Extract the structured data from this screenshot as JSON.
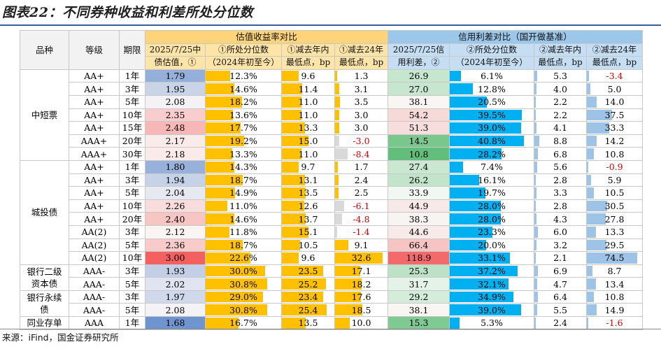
{
  "title": "图表22：不同券种收益和利差所处分位数",
  "source": "来源：iFind，国金证券研究所",
  "colors": {
    "yield_pos_bar": "#ffc000",
    "yield_neg_bar": "#d9d9d9",
    "credit_bar": "#00b0f0",
    "small_bar": "#9dc3e6",
    "neg_text": "#d00000"
  },
  "header": {
    "col_variety": "品种",
    "col_rating": "等级",
    "col_term": "期限",
    "group_yield": "估值收益率对比",
    "group_credit": "信用利差对比（国开做基准）",
    "y_val": [
      "2025/7/25中",
      "债估值，①"
    ],
    "y_pct": [
      "①所处分位数",
      "（2024年初至今）"
    ],
    "y_min_year": [
      "①减去年内",
      "最低点，bp"
    ],
    "y_min_24": [
      "①减去24年",
      "最低点，bp"
    ],
    "c_val": [
      "2025/7/25信",
      "用利差，②"
    ],
    "c_pct": [
      "②所处分位数",
      "（2024年初至今）"
    ],
    "c_min_year": [
      "②减去年内",
      "最低点，bp"
    ],
    "c_min_24": [
      "②减去24年",
      "最低点，bp"
    ]
  },
  "sections": [
    {
      "name": [
        "中短票"
      ],
      "rows": 7
    },
    {
      "name": [
        "城投债"
      ],
      "rows": 8
    },
    {
      "name": [
        "银行二级",
        "资本债"
      ],
      "rows": 2
    },
    {
      "name": [
        "银行永续",
        "债"
      ],
      "rows": 2
    },
    {
      "name": [
        "同业存单"
      ],
      "rows": 1
    }
  ],
  "rows": [
    {
      "rating": "AA+",
      "term": "1年",
      "yv": "1.79",
      "yp": "12.3%",
      "ypn": 12.3,
      "yy": "9.6",
      "yyn": 9.6,
      "y24": "1.3",
      "y24n": 1.3,
      "cv": "26.9",
      "cp": "6.1%",
      "cpn": 6.1,
      "cy": "5.3",
      "cyn": 5.3,
      "c24": "-3.4",
      "c24n": -3.4
    },
    {
      "rating": "AA+",
      "term": "3年",
      "yv": "1.95",
      "yp": "14.6%",
      "ypn": 14.6,
      "yy": "11.4",
      "yyn": 11.4,
      "y24": "3.1",
      "y24n": 3.1,
      "cv": "27.0",
      "cp": "12.8%",
      "cpn": 12.8,
      "cy": "4.0",
      "cyn": 4.0,
      "c24": "5.0",
      "c24n": 5.0
    },
    {
      "rating": "AA+",
      "term": "5年",
      "yv": "2.08",
      "yp": "18.2%",
      "ypn": 18.2,
      "yy": "11.0",
      "yyn": 11.0,
      "y24": "3.5",
      "y24n": 3.5,
      "cv": "38.1",
      "cp": "20.5%",
      "cpn": 20.5,
      "cy": "2.2",
      "cyn": 2.2,
      "c24": "14.0",
      "c24n": 14.0
    },
    {
      "rating": "AA+",
      "term": "10年",
      "yv": "2.35",
      "yp": "13.6%",
      "ypn": 13.6,
      "yy": "11.0",
      "yyn": 11.0,
      "y24": "3.0",
      "y24n": 3.0,
      "cv": "54.2",
      "cp": "39.5%",
      "cpn": 39.5,
      "cy": "2.2",
      "cyn": 2.2,
      "c24": "37.5",
      "c24n": 37.5
    },
    {
      "rating": "AA+",
      "term": "15年",
      "yv": "2.48",
      "yp": "17.7%",
      "ypn": 17.7,
      "yy": "13.3",
      "yyn": 13.3,
      "y24": "3.0",
      "y24n": 3.0,
      "cv": "51.3",
      "cp": "39.0%",
      "cpn": 39.0,
      "cy": "4.1",
      "cyn": 4.1,
      "c24": "33.3",
      "c24n": 33.3
    },
    {
      "rating": "AAA+",
      "term": "20年",
      "yv": "2.17",
      "yp": "19.2%",
      "ypn": 19.2,
      "yy": "15.0",
      "yyn": 15.0,
      "y24": "-3.0",
      "y24n": -3.0,
      "cv": "14.5",
      "cp": "40.8%",
      "cpn": 40.8,
      "cy": "8.8",
      "cyn": 8.8,
      "c24": "14.2",
      "c24n": 14.2
    },
    {
      "rating": "AAA+",
      "term": "30年",
      "yv": "2.18",
      "yp": "13.3%",
      "ypn": 13.3,
      "yy": "11.0",
      "yyn": 11.0,
      "y24": "-8.4",
      "y24n": -8.4,
      "cv": "10.8",
      "cp": "28.2%",
      "cpn": 28.2,
      "cy": "6.8",
      "cyn": 6.8,
      "c24": "10.8",
      "c24n": 10.8
    },
    {
      "rating": "AA+",
      "term": "1年",
      "yv": "1.80",
      "yp": "14.3%",
      "ypn": 14.3,
      "yy": "9.7",
      "yyn": 9.7,
      "y24": "1.7",
      "y24n": 1.7,
      "cv": "27.4",
      "cp": "7.4%",
      "cpn": 7.4,
      "cy": "5.6",
      "cyn": 5.6,
      "c24": "-0.9",
      "c24n": -0.9
    },
    {
      "rating": "AA+",
      "term": "3年",
      "yv": "1.94",
      "yp": "18.7%",
      "ypn": 18.7,
      "yy": "13.1",
      "yyn": 13.1,
      "y24": "2.4",
      "y24n": 2.4,
      "cv": "26.2",
      "cp": "16.1%",
      "cpn": 16.1,
      "cy": "2.8",
      "cyn": 2.8,
      "c24": "5.9",
      "c24n": 5.9
    },
    {
      "rating": "AA+",
      "term": "5年",
      "yv": "2.04",
      "yp": "14.9%",
      "ypn": 14.9,
      "yy": "13.5",
      "yyn": 13.5,
      "y24": "2.5",
      "y24n": 2.5,
      "cv": "33.9",
      "cp": "19.7%",
      "cpn": 19.7,
      "cy": "3.3",
      "cyn": 3.3,
      "c24": "10.5",
      "c24n": 10.5
    },
    {
      "rating": "AA+",
      "term": "10年",
      "yv": "2.26",
      "yp": "11.0%",
      "ypn": 11.0,
      "yy": "12.6",
      "yyn": 12.6,
      "y24": "-6.1",
      "y24n": -6.1,
      "cv": "44.9",
      "cp": "28.0%",
      "cpn": 28.0,
      "cy": "2.8",
      "cyn": 2.8,
      "c24": "30.5",
      "c24n": 30.5
    },
    {
      "rating": "AA+",
      "term": "20年",
      "yv": "2.40",
      "yp": "14.6%",
      "ypn": 14.6,
      "yy": "13.7",
      "yyn": 13.7,
      "y24": "-4.8",
      "y24n": -4.8,
      "cv": "38.3",
      "cp": "28.0%",
      "cpn": 28.0,
      "cy": "4.3",
      "cyn": 4.3,
      "c24": "27.8",
      "c24n": 27.8
    },
    {
      "rating": "AA(2)",
      "term": "3年",
      "yv": "2.12",
      "yp": "11.8%",
      "ypn": 11.8,
      "yy": "15.1",
      "yyn": 15.1,
      "y24": "-1.4",
      "y24n": -1.4,
      "cv": "44.6",
      "cp": "23.3%",
      "cpn": 23.3,
      "cy": "6.0",
      "cyn": 6.0,
      "c24": "13.3",
      "c24n": 13.3
    },
    {
      "rating": "AA(2)",
      "term": "5年",
      "yv": "2.36",
      "yp": "18.7%",
      "ypn": 18.7,
      "yy": "10.5",
      "yyn": 10.5,
      "y24": "9.1",
      "y24n": 9.1,
      "cv": "66.4",
      "cp": "20.0%",
      "cpn": 20.0,
      "cy": "3.2",
      "cyn": 3.2,
      "c24": "29.5",
      "c24n": 29.5
    },
    {
      "rating": "AA(2)",
      "term": "10年",
      "yv": "3.00",
      "yp": "22.6%",
      "ypn": 22.6,
      "yy": "9.6",
      "yyn": 9.6,
      "y24": "32.6",
      "y24n": 32.6,
      "cv": "118.9",
      "cp": "33.1%",
      "cpn": 33.1,
      "cy": "2.1",
      "cyn": 2.1,
      "c24": "74.5",
      "c24n": 74.5
    },
    {
      "rating": "AAA-",
      "term": "3年",
      "yv": "1.93",
      "yp": "30.0%",
      "ypn": 30.0,
      "yy": "23.5",
      "yyn": 23.5,
      "y24": "17.1",
      "y24n": 17.1,
      "cv": "25.3",
      "cp": "37.2%",
      "cpn": 37.2,
      "cy": "6.9",
      "cyn": 6.9,
      "c24": "8.7",
      "c24n": 8.7
    },
    {
      "rating": "AAA-",
      "term": "5年",
      "yv": "2.02",
      "yp": "30.8%",
      "ypn": 30.8,
      "yy": "25.2",
      "yyn": 25.2,
      "y24": "18.2",
      "y24n": 18.2,
      "cv": "31.7",
      "cp": "32.1%",
      "cpn": 32.1,
      "cy": "4.7",
      "cyn": 4.7,
      "c24": "13.4",
      "c24n": 13.4
    },
    {
      "rating": "AAA-",
      "term": "3年",
      "yv": "1.97",
      "yp": "29.0%",
      "ypn": 29.0,
      "yy": "23.4",
      "yyn": 23.4,
      "y24": "17.6",
      "y24n": 17.6,
      "cv": "29.2",
      "cp": "34.9%",
      "cpn": 34.9,
      "cy": "6.4",
      "cyn": 6.4,
      "c24": "10.8",
      "c24n": 10.8
    },
    {
      "rating": "AAA-",
      "term": "5年",
      "yv": "2.08",
      "yp": "30.8%",
      "ypn": 30.8,
      "yy": "25.4",
      "yyn": 25.4,
      "y24": "18.5",
      "y24n": 18.5,
      "cv": "38.1",
      "cp": "39.0%",
      "cpn": 39.0,
      "cy": "5.5",
      "cyn": 5.5,
      "c24": "14.9",
      "c24n": 14.9
    },
    {
      "rating": "AAA",
      "term": "1年",
      "yv": "1.68",
      "yp": "16.7%",
      "ypn": 16.7,
      "yy": "13.5",
      "yyn": 13.5,
      "y24": "10.0",
      "y24n": 10.0,
      "cv": "15.3",
      "cp": "5.3%",
      "cpn": 5.3,
      "cy": "2.4",
      "cyn": 2.4,
      "c24": "-1.6",
      "c24n": -1.6
    }
  ]
}
